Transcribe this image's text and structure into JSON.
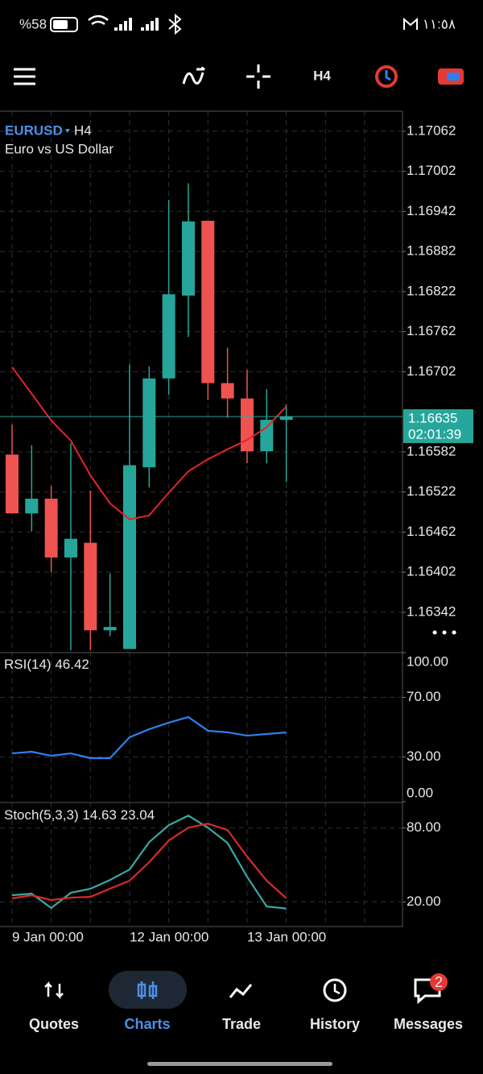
{
  "status_bar": {
    "battery": "%58",
    "time": "١١:٥٨"
  },
  "toolbar": {
    "timeframe": "H4"
  },
  "chart_data": [
    {
      "type": "candlestick",
      "symbol": "EURUSD",
      "timeframe": "H4",
      "description": "Euro vs US Dollar",
      "categories": [
        "9 Jan 00:00",
        null,
        null,
        null,
        null,
        null,
        "12 Jan 00:00",
        null,
        null,
        null,
        null,
        null,
        "13 Jan 00:00",
        null,
        null
      ],
      "open": [
        1.16578,
        1.1649,
        1.16512,
        1.16424,
        1.16446,
        1.16315,
        1.16287,
        1.16559,
        1.16692,
        1.16816,
        1.16928,
        1.16685,
        1.16662,
        1.16583,
        1.1663
      ],
      "high": [
        1.16623,
        1.16592,
        1.16531,
        1.16595,
        1.16524,
        1.164,
        1.16713,
        1.1671,
        1.16959,
        1.16984,
        1.16928,
        1.16738,
        1.16705,
        1.16676,
        1.16653
      ],
      "low": [
        1.1649,
        1.16463,
        1.16402,
        1.16285,
        1.16285,
        1.16306,
        1.16287,
        1.16529,
        1.16668,
        1.16754,
        1.1666,
        1.16633,
        1.16565,
        1.16565,
        1.16537
      ],
      "close": [
        1.1649,
        1.16512,
        1.16424,
        1.16452,
        1.16315,
        1.1632,
        1.16562,
        1.16692,
        1.16818,
        1.16927,
        1.16685,
        1.16662,
        1.16583,
        1.1663,
        1.16635
      ],
      "up_color": "#26a69a",
      "down_color": "#ef5350",
      "ma": {
        "color": "#e3242b",
        "values": [
          1.16709,
          1.16669,
          1.16629,
          1.16599,
          1.16547,
          1.16505,
          1.16481,
          1.16487,
          1.16521,
          1.16553,
          1.16571,
          1.16586,
          1.166,
          1.16619,
          1.1665
        ]
      },
      "last_price": 1.16635,
      "timer": "02:01:39",
      "price_color": "#26a69a",
      "ylim": [
        1.16284,
        1.17092
      ],
      "yticks": [
        1.17062,
        1.17002,
        1.16942,
        1.16882,
        1.16822,
        1.16762,
        1.16702,
        1.16582,
        1.16522,
        1.16462,
        1.16402,
        1.16342
      ],
      "grid": true
    },
    {
      "type": "line",
      "title": "RSI(14)",
      "series": [
        {
          "color": "#2f80ed",
          "values": [
            32.4,
            33.5,
            30.8,
            32.4,
            29.2,
            29.2,
            43.2,
            48.6,
            53.0,
            56.8,
            47.6,
            46.5,
            44.3,
            45.4,
            46.42
          ]
        }
      ],
      "ylim": [
        0,
        100
      ],
      "yticks": [
        {
          "value": 100,
          "label": "100.00"
        },
        {
          "value": 70,
          "label": "70.00"
        },
        {
          "value": 30,
          "label": "30.00"
        },
        {
          "value": 0,
          "label": "0.00"
        }
      ],
      "grid": true
    },
    {
      "type": "line",
      "title": "Stoch(5,3,3)",
      "series": [
        {
          "color": "#3aa8a4",
          "values": [
            25.4,
            26.7,
            15.0,
            27.4,
            30.7,
            37.8,
            46.3,
            68.5,
            82.2,
            90.0,
            80.2,
            67.8,
            40.4,
            16.3,
            14.63
          ]
        },
        {
          "color": "#d82a2a",
          "values": [
            22.8,
            25.4,
            21.5,
            23.5,
            24.1,
            30.7,
            37.2,
            52.2,
            69.8,
            80.2,
            83.5,
            78.3,
            56.8,
            37.2,
            23.04
          ]
        }
      ],
      "ylim": [
        0,
        100
      ],
      "yticks": [
        {
          "value": 80,
          "label": "80.00"
        },
        {
          "value": 20,
          "label": "20.00"
        }
      ],
      "grid": true
    }
  ],
  "nav": {
    "items": [
      "Quotes",
      "Charts",
      "Trade",
      "History",
      "Messages"
    ],
    "badge": 2
  }
}
